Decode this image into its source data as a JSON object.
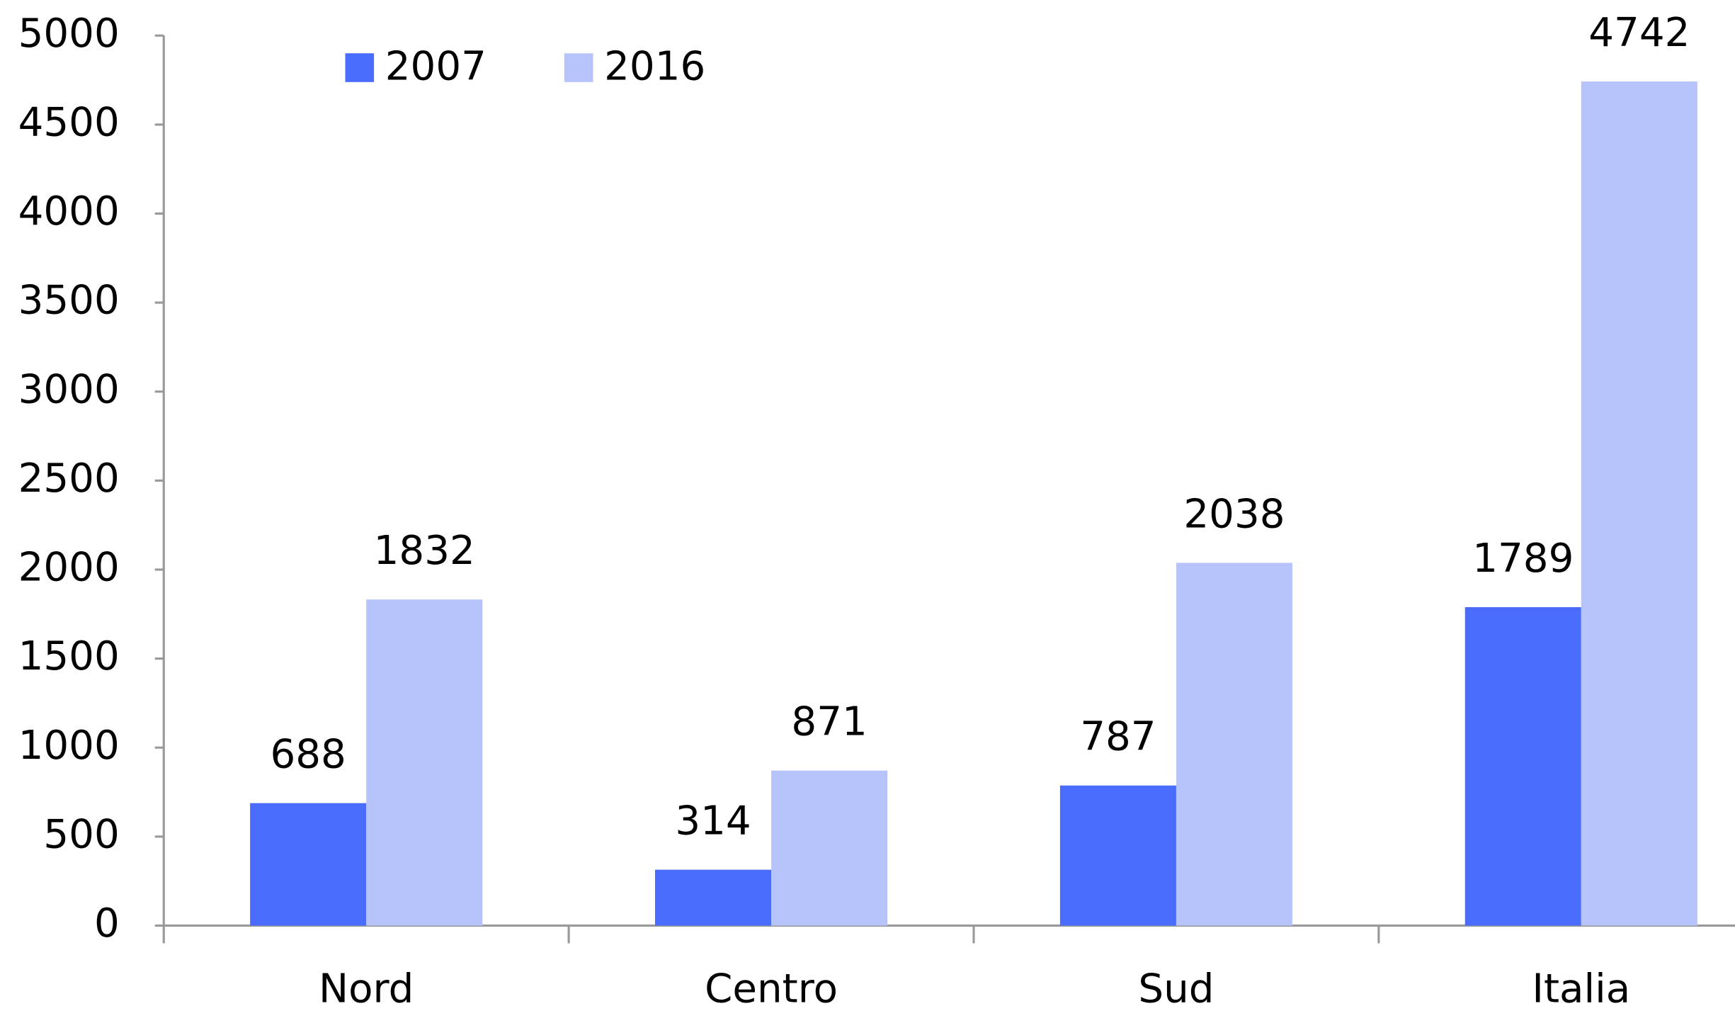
{
  "chart_data": {
    "type": "bar",
    "categories": [
      "Nord",
      "Centro",
      "Sud",
      "Italia"
    ],
    "series": [
      {
        "name": "2007",
        "color": "#4a6cfd",
        "values": [
          688,
          314,
          787,
          1789
        ]
      },
      {
        "name": "2016",
        "color": "#b6c4fb",
        "values": [
          1832,
          871,
          2038,
          4742
        ]
      }
    ],
    "ylim": [
      0,
      5000
    ],
    "yticks": [
      0,
      500,
      1000,
      1500,
      2000,
      2500,
      3000,
      3500,
      4000,
      4500,
      5000
    ],
    "grid": false,
    "legend": "top-left",
    "data_labels": true
  }
}
